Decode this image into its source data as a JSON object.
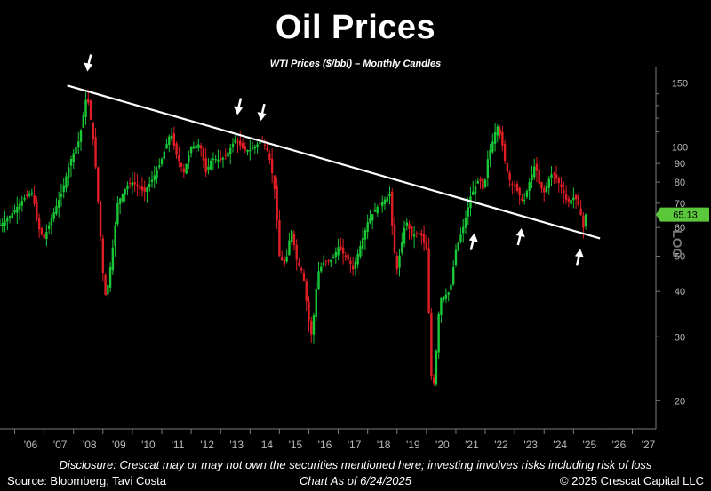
{
  "colors": {
    "up": "#19c837",
    "down": "#e01e24",
    "trend": "#ffffff",
    "price_tag": "#5ac83a",
    "axis": "#7c7c7c",
    "arrow": "#ffffff"
  },
  "chart_data": {
    "type": "candlestick",
    "title": "Oil Prices",
    "subtitle": "WTI Prices ($/bbl) – Monthly Candles",
    "y_scale": "log",
    "y_scale_label": "LOG",
    "ylim": [
      18,
      160
    ],
    "y_ticks": [
      20,
      30,
      40,
      50,
      60,
      70,
      80,
      90,
      100,
      150
    ],
    "x_tick_labels": [
      "'06",
      "'07",
      "'08",
      "'09",
      "'10",
      "'11",
      "'12",
      "'13",
      "'14",
      "'15",
      "'16",
      "'17",
      "'18",
      "'19",
      "'20",
      "'21",
      "'22",
      "'23",
      "'24",
      "'25",
      "'26",
      "'27"
    ],
    "x_range_years": [
      2005.5,
      2027.8
    ],
    "last_price_label": "65.13",
    "last_price": 65.13,
    "close_anchors": [
      [
        2005.5,
        61
      ],
      [
        2005.8,
        64
      ],
      [
        2006.3,
        72
      ],
      [
        2006.6,
        75
      ],
      [
        2006.8,
        60
      ],
      [
        2007.0,
        56
      ],
      [
        2007.3,
        65
      ],
      [
        2007.6,
        75
      ],
      [
        2007.9,
        92
      ],
      [
        2008.2,
        105
      ],
      [
        2008.45,
        140
      ],
      [
        2008.55,
        125
      ],
      [
        2008.7,
        100
      ],
      [
        2008.85,
        68
      ],
      [
        2009.0,
        45
      ],
      [
        2009.1,
        38
      ],
      [
        2009.3,
        50
      ],
      [
        2009.5,
        70
      ],
      [
        2009.8,
        78
      ],
      [
        2010.0,
        80
      ],
      [
        2010.4,
        75
      ],
      [
        2010.7,
        82
      ],
      [
        2010.95,
        90
      ],
      [
        2011.3,
        110
      ],
      [
        2011.5,
        95
      ],
      [
        2011.75,
        85
      ],
      [
        2012.0,
        100
      ],
      [
        2012.3,
        102
      ],
      [
        2012.5,
        85
      ],
      [
        2012.7,
        93
      ],
      [
        2013.0,
        92
      ],
      [
        2013.2,
        95
      ],
      [
        2013.5,
        105
      ],
      [
        2013.8,
        98
      ],
      [
        2014.0,
        98
      ],
      [
        2014.4,
        104
      ],
      [
        2014.55,
        100
      ],
      [
        2014.7,
        90
      ],
      [
        2014.85,
        75
      ],
      [
        2015.0,
        50
      ],
      [
        2015.2,
        47
      ],
      [
        2015.4,
        60
      ],
      [
        2015.6,
        48
      ],
      [
        2015.8,
        45
      ],
      [
        2016.0,
        33
      ],
      [
        2016.1,
        30
      ],
      [
        2016.3,
        45
      ],
      [
        2016.5,
        48
      ],
      [
        2016.8,
        49
      ],
      [
        2017.0,
        53
      ],
      [
        2017.4,
        48
      ],
      [
        2017.5,
        46
      ],
      [
        2017.8,
        55
      ],
      [
        2018.0,
        62
      ],
      [
        2018.3,
        68
      ],
      [
        2018.75,
        74
      ],
      [
        2018.9,
        52
      ],
      [
        2019.0,
        46
      ],
      [
        2019.3,
        63
      ],
      [
        2019.5,
        57
      ],
      [
        2019.8,
        58
      ],
      [
        2020.0,
        52
      ],
      [
        2020.2,
        20
      ],
      [
        2020.3,
        25
      ],
      [
        2020.45,
        38
      ],
      [
        2020.8,
        40
      ],
      [
        2021.0,
        52
      ],
      [
        2021.3,
        62
      ],
      [
        2021.5,
        73
      ],
      [
        2021.8,
        82
      ],
      [
        2021.95,
        75
      ],
      [
        2022.1,
        95
      ],
      [
        2022.2,
        100
      ],
      [
        2022.4,
        115
      ],
      [
        2022.55,
        105
      ],
      [
        2022.7,
        88
      ],
      [
        2022.85,
        80
      ],
      [
        2023.0,
        78
      ],
      [
        2023.3,
        70
      ],
      [
        2023.5,
        80
      ],
      [
        2023.7,
        90
      ],
      [
        2023.85,
        78
      ],
      [
        2024.0,
        75
      ],
      [
        2024.2,
        83
      ],
      [
        2024.3,
        85
      ],
      [
        2024.6,
        77
      ],
      [
        2024.8,
        70
      ],
      [
        2024.95,
        72
      ],
      [
        2025.05,
        73
      ],
      [
        2025.2,
        68
      ],
      [
        2025.35,
        59
      ],
      [
        2025.4,
        61
      ],
      [
        2025.48,
        65.13
      ]
    ],
    "trendline": [
      [
        2008.45,
        146
      ],
      [
        2025.9,
        56
      ]
    ],
    "annotations": [
      {
        "type": "arrow-down",
        "x": 2008.5,
        "y": 145
      },
      {
        "type": "arrow-down",
        "x": 2013.6,
        "y": 110
      },
      {
        "type": "arrow-down",
        "x": 2014.4,
        "y": 106
      },
      {
        "type": "arrow-up",
        "x": 2021.6,
        "y": 63
      },
      {
        "type": "arrow-up",
        "x": 2023.2,
        "y": 65
      },
      {
        "type": "arrow-up",
        "x": 2025.2,
        "y": 57
      }
    ]
  },
  "footer": {
    "disclosure": "Disclosure: Crescat may or may not own the securities mentioned here; investing involves risks including risk of loss",
    "source": "Source: Bloomberg; Tavi Costa",
    "as_of": "Chart As of 6/24/2025",
    "copyright": "© 2025 Crescat Capital LLC"
  }
}
